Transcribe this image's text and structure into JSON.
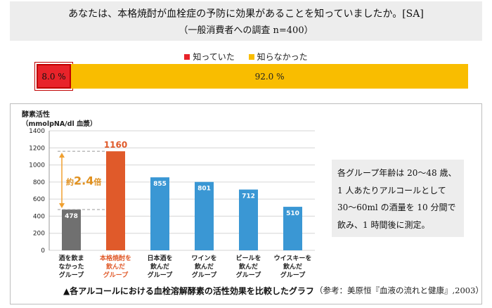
{
  "survey": {
    "question": "あなたは、本格焼酎が血栓症の予防に効果があることを知っていましたか。[SA]",
    "sample": "（一般消費者への調査 n=400）",
    "legend": [
      {
        "label": "知っていた",
        "color": "#e8232a"
      },
      {
        "label": "知らなかった",
        "color": "#f9bd00"
      }
    ],
    "values": {
      "known": "8.0 %",
      "unknown": "92.0 %"
    },
    "known_pct": 8.0,
    "unknown_pct": 92.0
  },
  "chart_data": {
    "type": "bar",
    "title": "酵素活性",
    "unit_label": "（mmolpNA/dl 血漿）",
    "ylim": [
      0,
      1400
    ],
    "yticks": [
      0,
      200,
      400,
      600,
      800,
      1000,
      1200,
      1400
    ],
    "categories": [
      [
        "酒を飲ま",
        "なかった",
        "グループ"
      ],
      [
        "本格焼酎を",
        "飲んだ",
        "グループ"
      ],
      [
        "日本酒を",
        "飲んだ",
        "グループ"
      ],
      [
        "ワインを",
        "飲んだ",
        "グループ"
      ],
      [
        "ビールを",
        "飲んだ",
        "グループ"
      ],
      [
        "ウイスキーを",
        "飲んだ",
        "グループ"
      ]
    ],
    "values": [
      478,
      1160,
      855,
      801,
      712,
      510
    ],
    "colors": [
      "#707070",
      "#e05a2a",
      "#3a97d4",
      "#3a97d4",
      "#3a97d4",
      "#3a97d4"
    ],
    "annotation": {
      "prefix": "約",
      "value": "2.4",
      "suffix": "倍"
    },
    "caption": "▲各アルコールにおける血栓溶解酵素の活性効果を比較したグラフ",
    "source": "（参考：美原恒『血液の流れと健康』,2003）"
  },
  "note": {
    "lines": [
      "各グループ年齢は 20〜48 歳、",
      "1 人あたりアルコールとして",
      "30〜60ml の酒量を 10 分間で",
      "飲み、1 時間後に測定。"
    ]
  }
}
